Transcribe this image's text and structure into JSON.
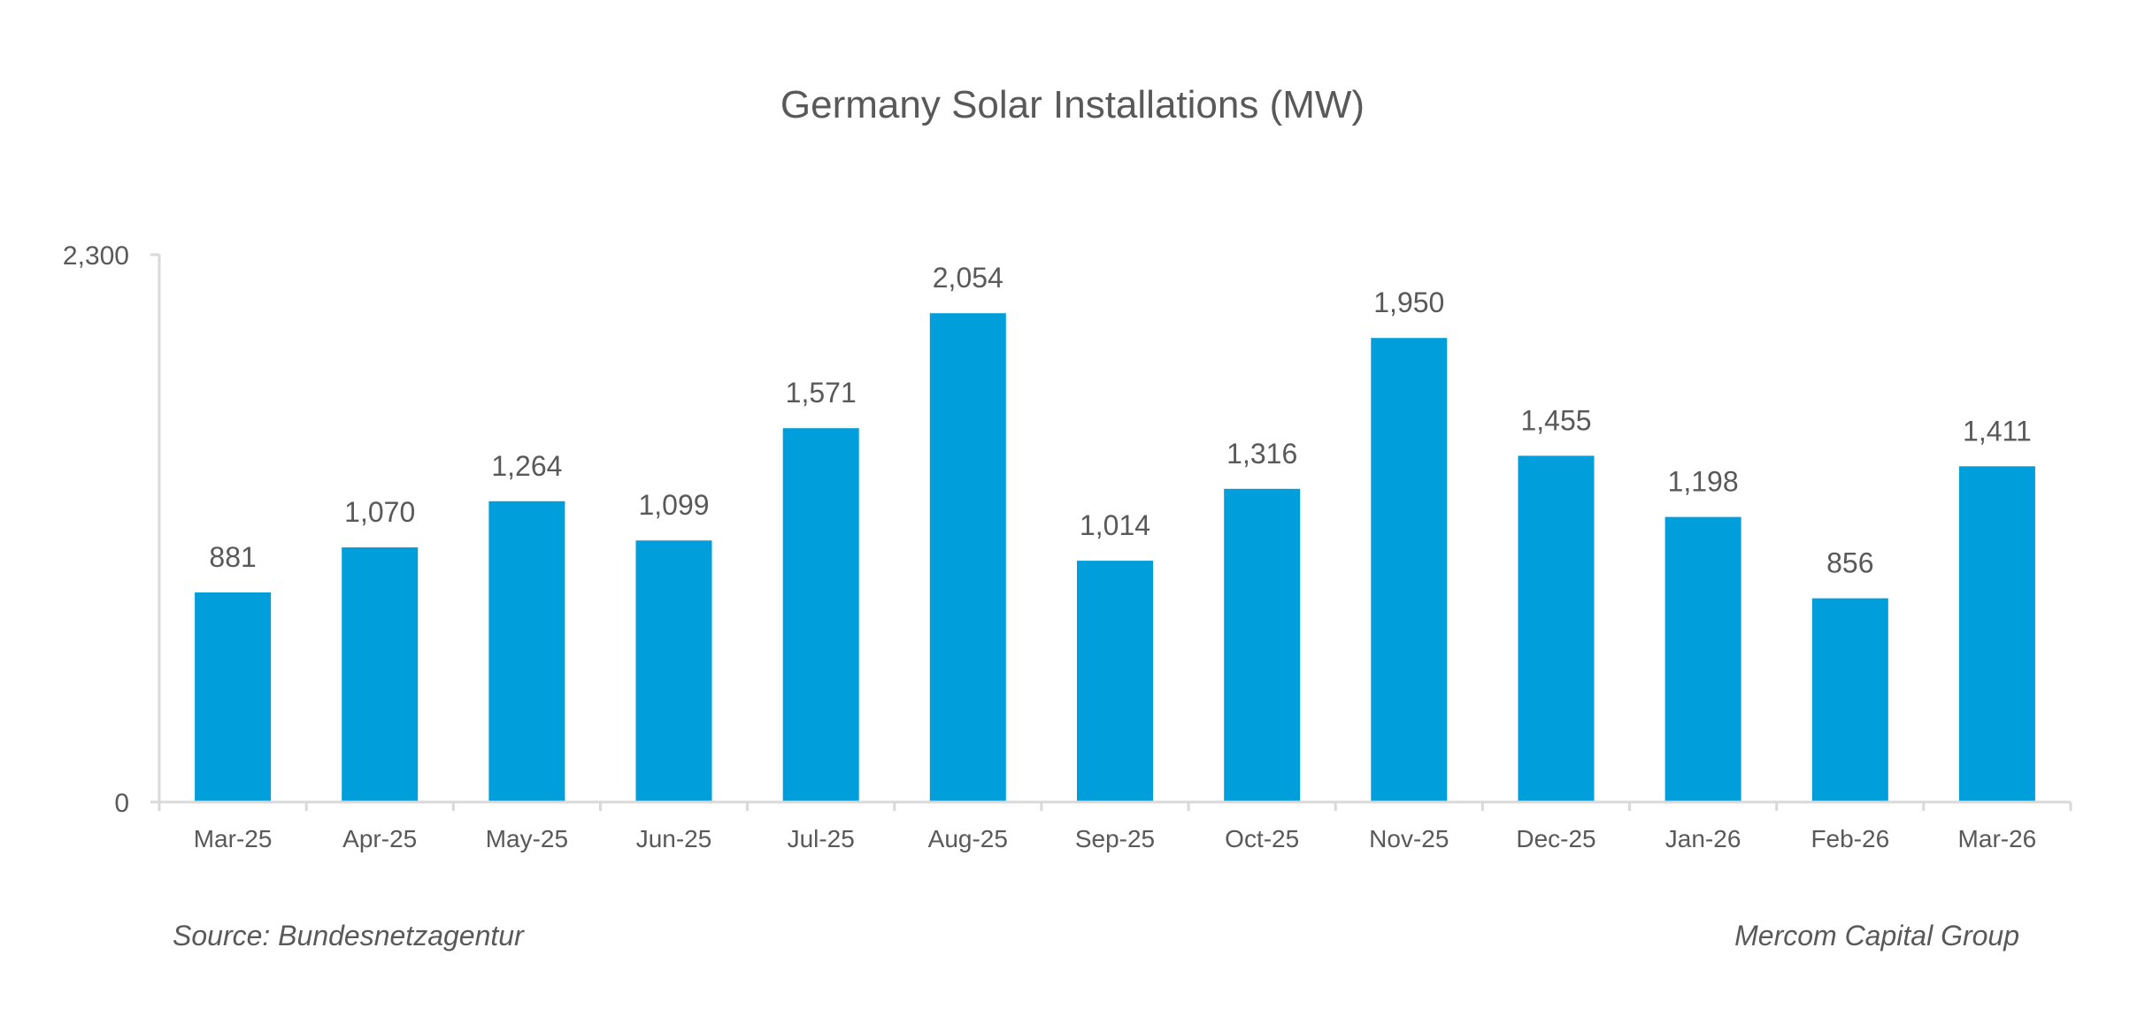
{
  "chart_data": {
    "type": "bar",
    "title": "Germany Solar Installations (MW)",
    "xlabel": "",
    "ylabel": "",
    "categories": [
      "Mar-25",
      "Apr-25",
      "May-25",
      "Jun-25",
      "Jul-25",
      "Aug-25",
      "Sep-25",
      "Oct-25",
      "Nov-25",
      "Dec-25",
      "Jan-26",
      "Feb-26",
      "Mar-26"
    ],
    "values": [
      881,
      1070,
      1264,
      1099,
      1571,
      2054,
      1014,
      1316,
      1950,
      1455,
      1198,
      856,
      1411
    ],
    "data_labels": [
      "881",
      "1,070",
      "1,264",
      "1,099",
      "1,571",
      "2,054",
      "1,014",
      "1,316",
      "1,950",
      "1,455",
      "1,198",
      "856",
      "1,411"
    ],
    "ylim": [
      0,
      2300
    ],
    "yticks": [
      0,
      2300
    ],
    "ytick_labels": [
      "0",
      "2,300"
    ],
    "grid": false,
    "legend": "none",
    "bar_color": "#009FDB",
    "axis_color": "#D9D9D9",
    "text_color": "#595959"
  },
  "footer": {
    "source": "Source: Bundesnetzagentur",
    "credit": "Mercom Capital Group"
  }
}
